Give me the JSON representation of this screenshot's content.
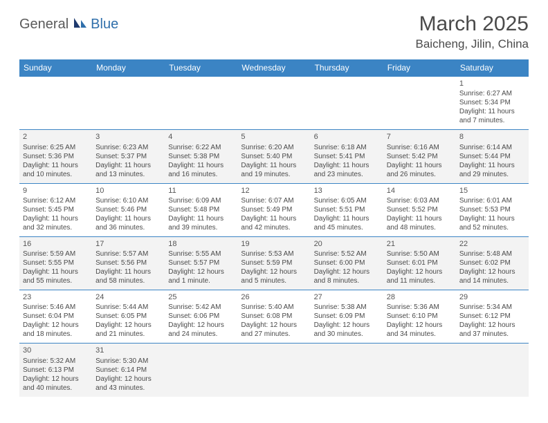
{
  "brand": {
    "part1": "General",
    "part2": "Blue"
  },
  "title": "March 2025",
  "location": "Baicheng, Jilin, China",
  "colors": {
    "header_bg": "#3b84c4",
    "header_text": "#ffffff",
    "row_alt_bg": "#f3f3f3",
    "border": "#3b84c4",
    "text": "#4a4a4a",
    "logo_gray": "#5a5a5a",
    "logo_blue": "#2f6fab"
  },
  "day_headers": [
    "Sunday",
    "Monday",
    "Tuesday",
    "Wednesday",
    "Thursday",
    "Friday",
    "Saturday"
  ],
  "weeks": [
    [
      null,
      null,
      null,
      null,
      null,
      null,
      {
        "n": "1",
        "sr": "6:27 AM",
        "ss": "5:34 PM",
        "dl": "11 hours and 7 minutes."
      }
    ],
    [
      {
        "n": "2",
        "sr": "6:25 AM",
        "ss": "5:36 PM",
        "dl": "11 hours and 10 minutes."
      },
      {
        "n": "3",
        "sr": "6:23 AM",
        "ss": "5:37 PM",
        "dl": "11 hours and 13 minutes."
      },
      {
        "n": "4",
        "sr": "6:22 AM",
        "ss": "5:38 PM",
        "dl": "11 hours and 16 minutes."
      },
      {
        "n": "5",
        "sr": "6:20 AM",
        "ss": "5:40 PM",
        "dl": "11 hours and 19 minutes."
      },
      {
        "n": "6",
        "sr": "6:18 AM",
        "ss": "5:41 PM",
        "dl": "11 hours and 23 minutes."
      },
      {
        "n": "7",
        "sr": "6:16 AM",
        "ss": "5:42 PM",
        "dl": "11 hours and 26 minutes."
      },
      {
        "n": "8",
        "sr": "6:14 AM",
        "ss": "5:44 PM",
        "dl": "11 hours and 29 minutes."
      }
    ],
    [
      {
        "n": "9",
        "sr": "6:12 AM",
        "ss": "5:45 PM",
        "dl": "11 hours and 32 minutes."
      },
      {
        "n": "10",
        "sr": "6:10 AM",
        "ss": "5:46 PM",
        "dl": "11 hours and 36 minutes."
      },
      {
        "n": "11",
        "sr": "6:09 AM",
        "ss": "5:48 PM",
        "dl": "11 hours and 39 minutes."
      },
      {
        "n": "12",
        "sr": "6:07 AM",
        "ss": "5:49 PM",
        "dl": "11 hours and 42 minutes."
      },
      {
        "n": "13",
        "sr": "6:05 AM",
        "ss": "5:51 PM",
        "dl": "11 hours and 45 minutes."
      },
      {
        "n": "14",
        "sr": "6:03 AM",
        "ss": "5:52 PM",
        "dl": "11 hours and 48 minutes."
      },
      {
        "n": "15",
        "sr": "6:01 AM",
        "ss": "5:53 PM",
        "dl": "11 hours and 52 minutes."
      }
    ],
    [
      {
        "n": "16",
        "sr": "5:59 AM",
        "ss": "5:55 PM",
        "dl": "11 hours and 55 minutes."
      },
      {
        "n": "17",
        "sr": "5:57 AM",
        "ss": "5:56 PM",
        "dl": "11 hours and 58 minutes."
      },
      {
        "n": "18",
        "sr": "5:55 AM",
        "ss": "5:57 PM",
        "dl": "12 hours and 1 minute."
      },
      {
        "n": "19",
        "sr": "5:53 AM",
        "ss": "5:59 PM",
        "dl": "12 hours and 5 minutes."
      },
      {
        "n": "20",
        "sr": "5:52 AM",
        "ss": "6:00 PM",
        "dl": "12 hours and 8 minutes."
      },
      {
        "n": "21",
        "sr": "5:50 AM",
        "ss": "6:01 PM",
        "dl": "12 hours and 11 minutes."
      },
      {
        "n": "22",
        "sr": "5:48 AM",
        "ss": "6:02 PM",
        "dl": "12 hours and 14 minutes."
      }
    ],
    [
      {
        "n": "23",
        "sr": "5:46 AM",
        "ss": "6:04 PM",
        "dl": "12 hours and 18 minutes."
      },
      {
        "n": "24",
        "sr": "5:44 AM",
        "ss": "6:05 PM",
        "dl": "12 hours and 21 minutes."
      },
      {
        "n": "25",
        "sr": "5:42 AM",
        "ss": "6:06 PM",
        "dl": "12 hours and 24 minutes."
      },
      {
        "n": "26",
        "sr": "5:40 AM",
        "ss": "6:08 PM",
        "dl": "12 hours and 27 minutes."
      },
      {
        "n": "27",
        "sr": "5:38 AM",
        "ss": "6:09 PM",
        "dl": "12 hours and 30 minutes."
      },
      {
        "n": "28",
        "sr": "5:36 AM",
        "ss": "6:10 PM",
        "dl": "12 hours and 34 minutes."
      },
      {
        "n": "29",
        "sr": "5:34 AM",
        "ss": "6:12 PM",
        "dl": "12 hours and 37 minutes."
      }
    ],
    [
      {
        "n": "30",
        "sr": "5:32 AM",
        "ss": "6:13 PM",
        "dl": "12 hours and 40 minutes."
      },
      {
        "n": "31",
        "sr": "5:30 AM",
        "ss": "6:14 PM",
        "dl": "12 hours and 43 minutes."
      },
      null,
      null,
      null,
      null,
      null
    ]
  ],
  "labels": {
    "sunrise": "Sunrise:",
    "sunset": "Sunset:",
    "daylight": "Daylight:"
  }
}
